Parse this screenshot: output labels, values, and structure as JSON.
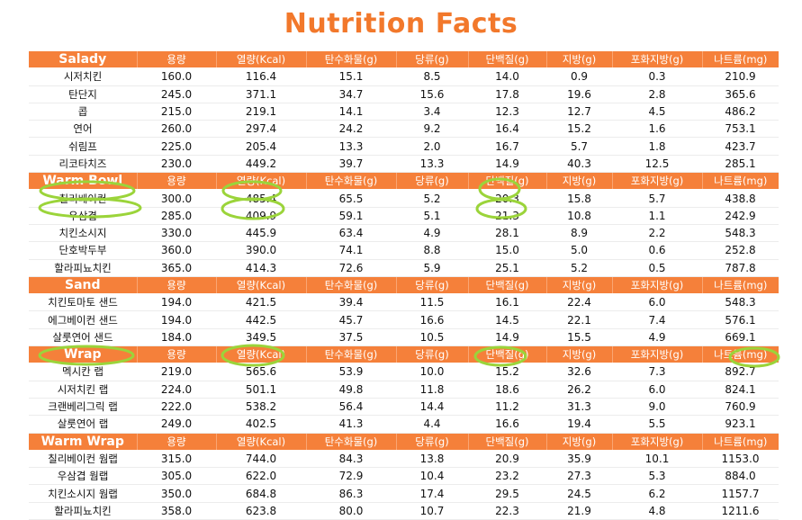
{
  "title": "Nutrition Facts",
  "columns": [
    "용량",
    "열량(Kcal)",
    "탄수화물(g)",
    "당류(g)",
    "단백질(g)",
    "지방(g)",
    "포화지방(g)",
    "나트륨(mg)"
  ],
  "sections": [
    {
      "category": "Salady",
      "rows": [
        {
          "name": "시저치킨",
          "values": [
            "160.0",
            "116.4",
            "15.1",
            "8.5",
            "14.0",
            "0.9",
            "0.3",
            "210.9"
          ]
        },
        {
          "name": "탄단지",
          "values": [
            "245.0",
            "371.1",
            "34.7",
            "15.6",
            "17.8",
            "19.6",
            "2.8",
            "365.6"
          ]
        },
        {
          "name": "콥",
          "values": [
            "215.0",
            "219.1",
            "14.1",
            "3.4",
            "12.3",
            "12.7",
            "4.5",
            "486.2"
          ]
        },
        {
          "name": "연어",
          "values": [
            "260.0",
            "297.4",
            "24.2",
            "9.2",
            "16.4",
            "15.2",
            "1.6",
            "753.1"
          ]
        },
        {
          "name": "쉬림프",
          "values": [
            "225.0",
            "205.4",
            "13.3",
            "2.0",
            "16.7",
            "5.7",
            "1.8",
            "423.7"
          ]
        },
        {
          "name": "리코타치즈",
          "values": [
            "230.0",
            "449.2",
            "39.7",
            "13.3",
            "14.9",
            "40.3",
            "12.5",
            "285.1"
          ]
        }
      ]
    },
    {
      "category": "Warm Bowl",
      "rows": [
        {
          "name": "칠리베이컨",
          "values": [
            "300.0",
            "485.4",
            "65.5",
            "5.2",
            "20.3",
            "15.8",
            "5.7",
            "438.8"
          ]
        },
        {
          "name": "우삼겹",
          "values": [
            "285.0",
            "409.9",
            "59.1",
            "5.1",
            "21.3",
            "10.8",
            "1.1",
            "242.9"
          ]
        },
        {
          "name": "치킨소시지",
          "values": [
            "330.0",
            "445.9",
            "63.4",
            "4.9",
            "28.1",
            "8.9",
            "2.2",
            "548.3"
          ]
        },
        {
          "name": "단호박두부",
          "values": [
            "360.0",
            "390.0",
            "74.1",
            "8.8",
            "15.0",
            "5.0",
            "0.6",
            "252.8"
          ]
        },
        {
          "name": "할라피뇨치킨",
          "values": [
            "365.0",
            "414.3",
            "72.6",
            "5.9",
            "25.1",
            "5.2",
            "0.5",
            "787.8"
          ]
        }
      ]
    },
    {
      "category": "Sand",
      "rows": [
        {
          "name": "치킨토마토 샌드",
          "values": [
            "194.0",
            "421.5",
            "39.4",
            "11.5",
            "16.1",
            "22.4",
            "6.0",
            "548.3"
          ]
        },
        {
          "name": "에그베이컨 샌드",
          "values": [
            "194.0",
            "442.5",
            "45.7",
            "16.6",
            "14.5",
            "22.1",
            "7.4",
            "576.1"
          ]
        },
        {
          "name": "살룻연어 샌드",
          "values": [
            "184.0",
            "349.5",
            "37.5",
            "10.5",
            "14.9",
            "15.5",
            "4.9",
            "669.1"
          ]
        }
      ]
    },
    {
      "category": "Wrap",
      "rows": [
        {
          "name": "멕시칸 랩",
          "values": [
            "219.0",
            "565.6",
            "53.9",
            "10.0",
            "15.2",
            "32.6",
            "7.3",
            "892.7"
          ]
        },
        {
          "name": "시저치킨 랩",
          "values": [
            "224.0",
            "501.1",
            "49.8",
            "11.8",
            "18.6",
            "26.2",
            "6.0",
            "824.1"
          ]
        },
        {
          "name": "크랜베리그릭 랩",
          "values": [
            "222.0",
            "538.2",
            "56.4",
            "14.4",
            "11.2",
            "31.3",
            "9.0",
            "760.9"
          ]
        },
        {
          "name": "살룻연어 랩",
          "values": [
            "249.0",
            "402.5",
            "41.3",
            "4.4",
            "16.6",
            "19.4",
            "5.5",
            "923.1"
          ]
        }
      ]
    },
    {
      "category": "Warm Wrap",
      "rows": [
        {
          "name": "칠리베이컨 웜랩",
          "values": [
            "315.0",
            "744.0",
            "84.3",
            "13.8",
            "20.9",
            "35.9",
            "10.1",
            "1153.0"
          ]
        },
        {
          "name": "우삼겹 웜랩",
          "values": [
            "305.0",
            "622.0",
            "72.9",
            "10.4",
            "23.2",
            "27.3",
            "5.3",
            "884.0"
          ]
        },
        {
          "name": "치킨소시지 웜랩",
          "values": [
            "350.0",
            "684.8",
            "86.3",
            "17.4",
            "29.5",
            "24.5",
            "6.2",
            "1157.7"
          ]
        },
        {
          "name": "할라피뇨치킨",
          "values": [
            "358.0",
            "623.8",
            "80.0",
            "10.7",
            "22.3",
            "21.9",
            "4.8",
            "1211.6"
          ]
        }
      ]
    }
  ],
  "highlight_color": "#9bd43a",
  "header_color": "#f5803a",
  "title_color": "#f2782b"
}
